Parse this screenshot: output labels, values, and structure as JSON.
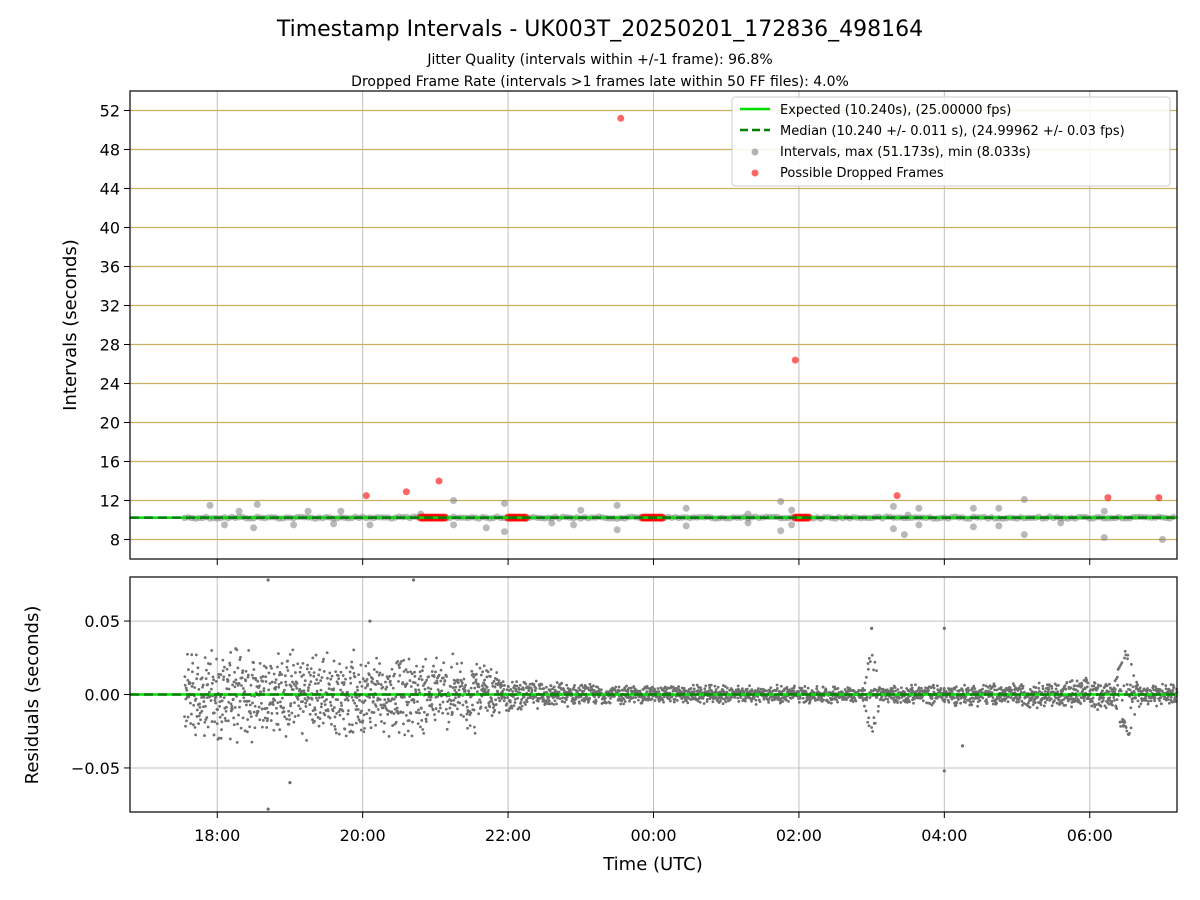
{
  "chart_data": [
    {
      "type": "scatter",
      "title": "Timestamp Intervals - UK003T_20250201_172836_498164",
      "subtitle_lines": [
        "Jitter Quality (intervals within +/-1 frame): 96.8%",
        "Dropped Frame Rate (intervals >1 frames late within 50 FF files): 4.0%"
      ],
      "xlabel": "",
      "ylabel": "Intervals (seconds)",
      "x_unit": "hours since 17:00 UTC",
      "xlim": [
        -0.2,
        14.2
      ],
      "ylim": [
        6.0,
        54.0
      ],
      "yticks": [
        8,
        12,
        16,
        20,
        24,
        28,
        32,
        36,
        40,
        44,
        48,
        52
      ],
      "grid": true,
      "legend_position": "top-right",
      "legend": [
        "Expected (10.240s), (25.00000 fps)",
        "Median (10.240 +/- 0.011 s), (24.99962 +/- 0.03 fps)",
        "Intervals, max (51.173s), min (8.033s)",
        "Possible Dropped Frames"
      ],
      "colors": {
        "expected": "#00e000",
        "median": "#007f00",
        "intervals": "#808080",
        "dropped": "#ff0000",
        "hgrid": "#c8b060",
        "vgrid": "#c0c0c0"
      },
      "expected_line": 10.24,
      "median_line": 10.24,
      "interval_points": [
        [
          0.9,
          11.5
        ],
        [
          1.1,
          9.5
        ],
        [
          1.3,
          10.9
        ],
        [
          1.5,
          9.2
        ],
        [
          1.55,
          11.6
        ],
        [
          2.05,
          9.5
        ],
        [
          2.7,
          10.9
        ],
        [
          2.25,
          10.9
        ],
        [
          2.6,
          9.6
        ],
        [
          3.1,
          9.5
        ],
        [
          3.8,
          10.6
        ],
        [
          4.25,
          12.0
        ],
        [
          4.25,
          9.5
        ],
        [
          4.7,
          9.2
        ],
        [
          4.95,
          11.7
        ],
        [
          4.95,
          8.8
        ],
        [
          5.6,
          9.7
        ],
        [
          6.0,
          11.0
        ],
        [
          5.9,
          9.5
        ],
        [
          6.5,
          11.5
        ],
        [
          6.5,
          9.0
        ],
        [
          7.45,
          11.2
        ],
        [
          7.45,
          9.4
        ],
        [
          8.3,
          9.7
        ],
        [
          8.3,
          10.6
        ],
        [
          8.75,
          11.9
        ],
        [
          8.75,
          8.9
        ],
        [
          8.9,
          9.5
        ],
        [
          8.9,
          11.0
        ],
        [
          10.3,
          11.4
        ],
        [
          10.3,
          9.1
        ],
        [
          10.45,
          8.5
        ],
        [
          10.5,
          10.5
        ],
        [
          10.65,
          9.5
        ],
        [
          10.65,
          11.2
        ],
        [
          11.4,
          9.3
        ],
        [
          11.4,
          11.2
        ],
        [
          11.75,
          9.4
        ],
        [
          11.75,
          11.2
        ],
        [
          12.1,
          12.1
        ],
        [
          12.1,
          8.5
        ],
        [
          12.6,
          9.7
        ],
        [
          13.2,
          8.2
        ],
        [
          13.2,
          10.9
        ],
        [
          14.0,
          8.0
        ]
      ],
      "dropped_points": [
        [
          3.05,
          12.5
        ],
        [
          3.6,
          12.9
        ],
        [
          4.05,
          14.0
        ],
        [
          6.55,
          51.2
        ],
        [
          8.95,
          26.4
        ],
        [
          10.35,
          12.5
        ],
        [
          13.25,
          12.3
        ],
        [
          13.95,
          12.3
        ]
      ],
      "dropped_clusters": [
        {
          "x_start": 3.8,
          "x_end": 4.15,
          "y": 10.24
        },
        {
          "x_start": 5.0,
          "x_end": 5.25,
          "y": 10.24
        },
        {
          "x_start": 6.85,
          "x_end": 7.15,
          "y": 10.24
        },
        {
          "x_start": 8.95,
          "x_end": 9.15,
          "y": 10.24
        }
      ],
      "intervals_x_range": [
        0.55,
        14.2
      ]
    },
    {
      "type": "scatter",
      "xlabel": "Time (UTC)",
      "ylabel": "Residuals (seconds)",
      "xlim": [
        -0.2,
        14.2
      ],
      "ylim": [
        -0.08,
        0.08
      ],
      "yticks": [
        0.05,
        0.0,
        -0.05
      ],
      "ytick_labels": [
        "0.05",
        "0.00",
        "−0.05"
      ],
      "xticks": [
        1,
        3,
        5,
        7,
        9,
        11,
        13,
        15
      ],
      "xtick_labels": [
        "18:00",
        "20:00",
        "22:00",
        "00:00",
        "02:00",
        "04:00",
        "06:00"
      ],
      "grid": true,
      "zero_line": 0.0,
      "residual_envelope": [
        [
          0.55,
          0.032
        ],
        [
          1.5,
          0.035
        ],
        [
          2.5,
          0.032
        ],
        [
          3.5,
          0.03
        ],
        [
          4.5,
          0.03
        ],
        [
          5.0,
          0.012
        ],
        [
          6.0,
          0.008
        ],
        [
          7.0,
          0.007
        ],
        [
          8.0,
          0.007
        ],
        [
          9.0,
          0.007
        ],
        [
          10.0,
          0.006
        ],
        [
          11.0,
          0.008
        ],
        [
          12.0,
          0.009
        ],
        [
          13.0,
          0.012
        ],
        [
          14.2,
          0.008
        ]
      ],
      "residual_bumps": [
        {
          "x": 10.0,
          "amp": 0.028,
          "width": 0.12
        },
        {
          "x": 13.5,
          "amp": 0.03,
          "width": 0.18
        }
      ],
      "residual_outliers": [
        [
          1.7,
          0.078
        ],
        [
          1.7,
          -0.078
        ],
        [
          2.0,
          -0.06
        ],
        [
          3.7,
          0.078
        ],
        [
          3.1,
          0.05
        ],
        [
          10.0,
          0.045
        ],
        [
          11.0,
          0.045
        ],
        [
          11.0,
          -0.052
        ],
        [
          11.25,
          -0.035
        ]
      ]
    }
  ]
}
